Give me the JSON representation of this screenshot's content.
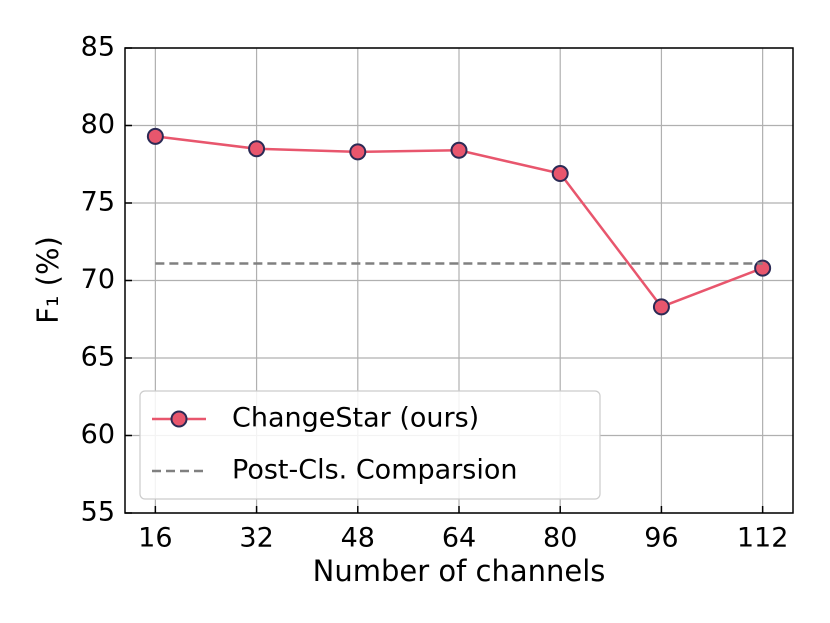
{
  "chart_data": {
    "type": "line",
    "x_label": "Number of channels",
    "y_label": "F₁ (%)",
    "x": [
      16,
      32,
      48,
      64,
      80,
      96,
      112
    ],
    "series": [
      {
        "name": "ChangeStar (ours)",
        "color": "#e8566d",
        "marker_edge": "#2b2a55",
        "marker": "circle",
        "linestyle": "solid",
        "values": [
          79.3,
          78.5,
          78.3,
          78.4,
          76.9,
          68.3,
          70.8
        ]
      },
      {
        "name": "Post-Cls. Comparsion",
        "color": "#808080",
        "marker": "none",
        "linestyle": "dashed",
        "values": [
          71.1,
          71.1,
          71.1,
          71.1,
          71.1,
          71.1,
          71.1
        ]
      }
    ],
    "xlim": [
      11.2,
      116.8
    ],
    "xticks": [
      16,
      32,
      48,
      64,
      80,
      96,
      112
    ],
    "ylim": [
      55,
      85
    ],
    "yticks": [
      55,
      60,
      65,
      70,
      75,
      80,
      85
    ],
    "grid": true,
    "legend": "lower left"
  }
}
